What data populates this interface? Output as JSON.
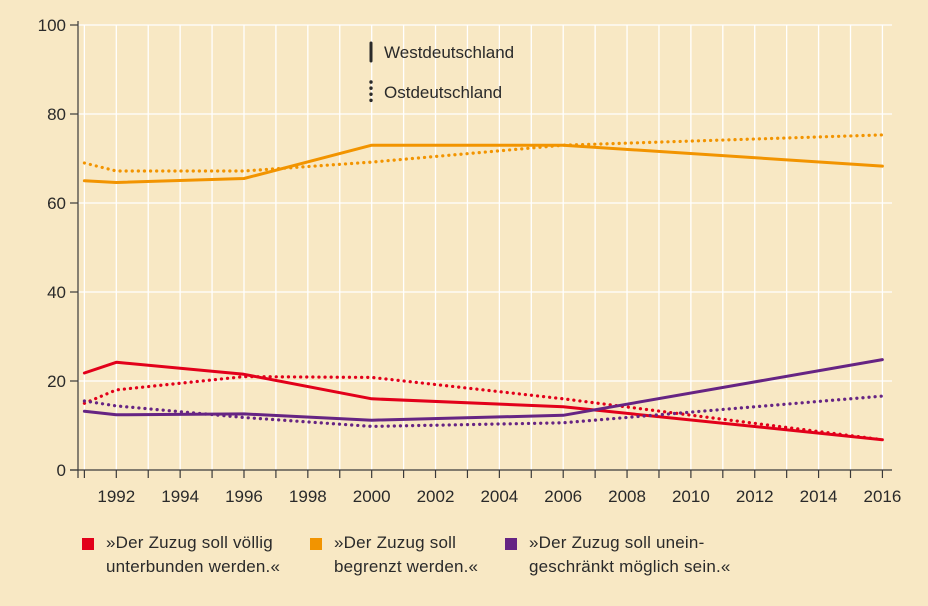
{
  "chart_data": {
    "type": "line",
    "x_ticks": [
      "1992",
      "1994",
      "1996",
      "1998",
      "2000",
      "2002",
      "2004",
      "2006",
      "2008",
      "2010",
      "2012",
      "2014",
      "2016"
    ],
    "y_ticks": [
      "0",
      "20",
      "40",
      "60",
      "80",
      "100"
    ],
    "xlim": [
      1990.8,
      2016.3
    ],
    "ylim": [
      0,
      100
    ],
    "grid": true,
    "style_legend": {
      "west_label": "Westdeutschland",
      "east_label": "Ostdeutschland",
      "placement": "top-center"
    },
    "series": [
      {
        "key": "red",
        "color": "#e2001a",
        "region": "Westdeutschland",
        "style": "solid",
        "x": [
          1991,
          1992,
          1996,
          2000,
          2006,
          2016
        ],
        "y": [
          21.8,
          24.2,
          21.5,
          16,
          14.2,
          6.8
        ]
      },
      {
        "key": "red",
        "color": "#e2001a",
        "region": "Ostdeutschland",
        "style": "dotted",
        "x": [
          1991,
          1992,
          1996,
          2000,
          2006,
          2016
        ],
        "y": [
          15,
          18,
          21,
          20.8,
          16,
          6.8
        ]
      },
      {
        "key": "orange",
        "color": "#f29400",
        "region": "Westdeutschland",
        "style": "solid",
        "x": [
          1991,
          1992,
          1996,
          2000,
          2006,
          2016
        ],
        "y": [
          65,
          64.6,
          65.5,
          73,
          73,
          68.3
        ]
      },
      {
        "key": "orange",
        "color": "#f29400",
        "region": "Ostdeutschland",
        "style": "dotted",
        "x": [
          1991,
          1992,
          1996,
          2000,
          2006,
          2016
        ],
        "y": [
          69,
          67.2,
          67.2,
          69.2,
          73,
          75.3
        ]
      },
      {
        "key": "purple",
        "color": "#662483",
        "region": "Westdeutschland",
        "style": "solid",
        "x": [
          1991,
          1992,
          1996,
          2000,
          2006,
          2016
        ],
        "y": [
          13.2,
          12.4,
          12.6,
          11.2,
          12.3,
          24.8
        ]
      },
      {
        "key": "purple",
        "color": "#662483",
        "region": "Ostdeutschland",
        "style": "dotted",
        "x": [
          1991,
          1992,
          1996,
          2000,
          2006,
          2016
        ],
        "y": [
          15.5,
          14.4,
          11.8,
          9.8,
          10.6,
          16.6
        ]
      }
    ],
    "legend": [
      {
        "color": "#e2001a",
        "line1": "»Der Zuzug soll völlig",
        "line2": "unterbunden werden.«"
      },
      {
        "color": "#f29400",
        "line1": "»Der Zuzug soll",
        "line2": "begrenzt werden.«"
      },
      {
        "color": "#662483",
        "line1": "»Der Zuzug soll unein-",
        "line2": "geschränkt möglich sein.«"
      }
    ]
  }
}
